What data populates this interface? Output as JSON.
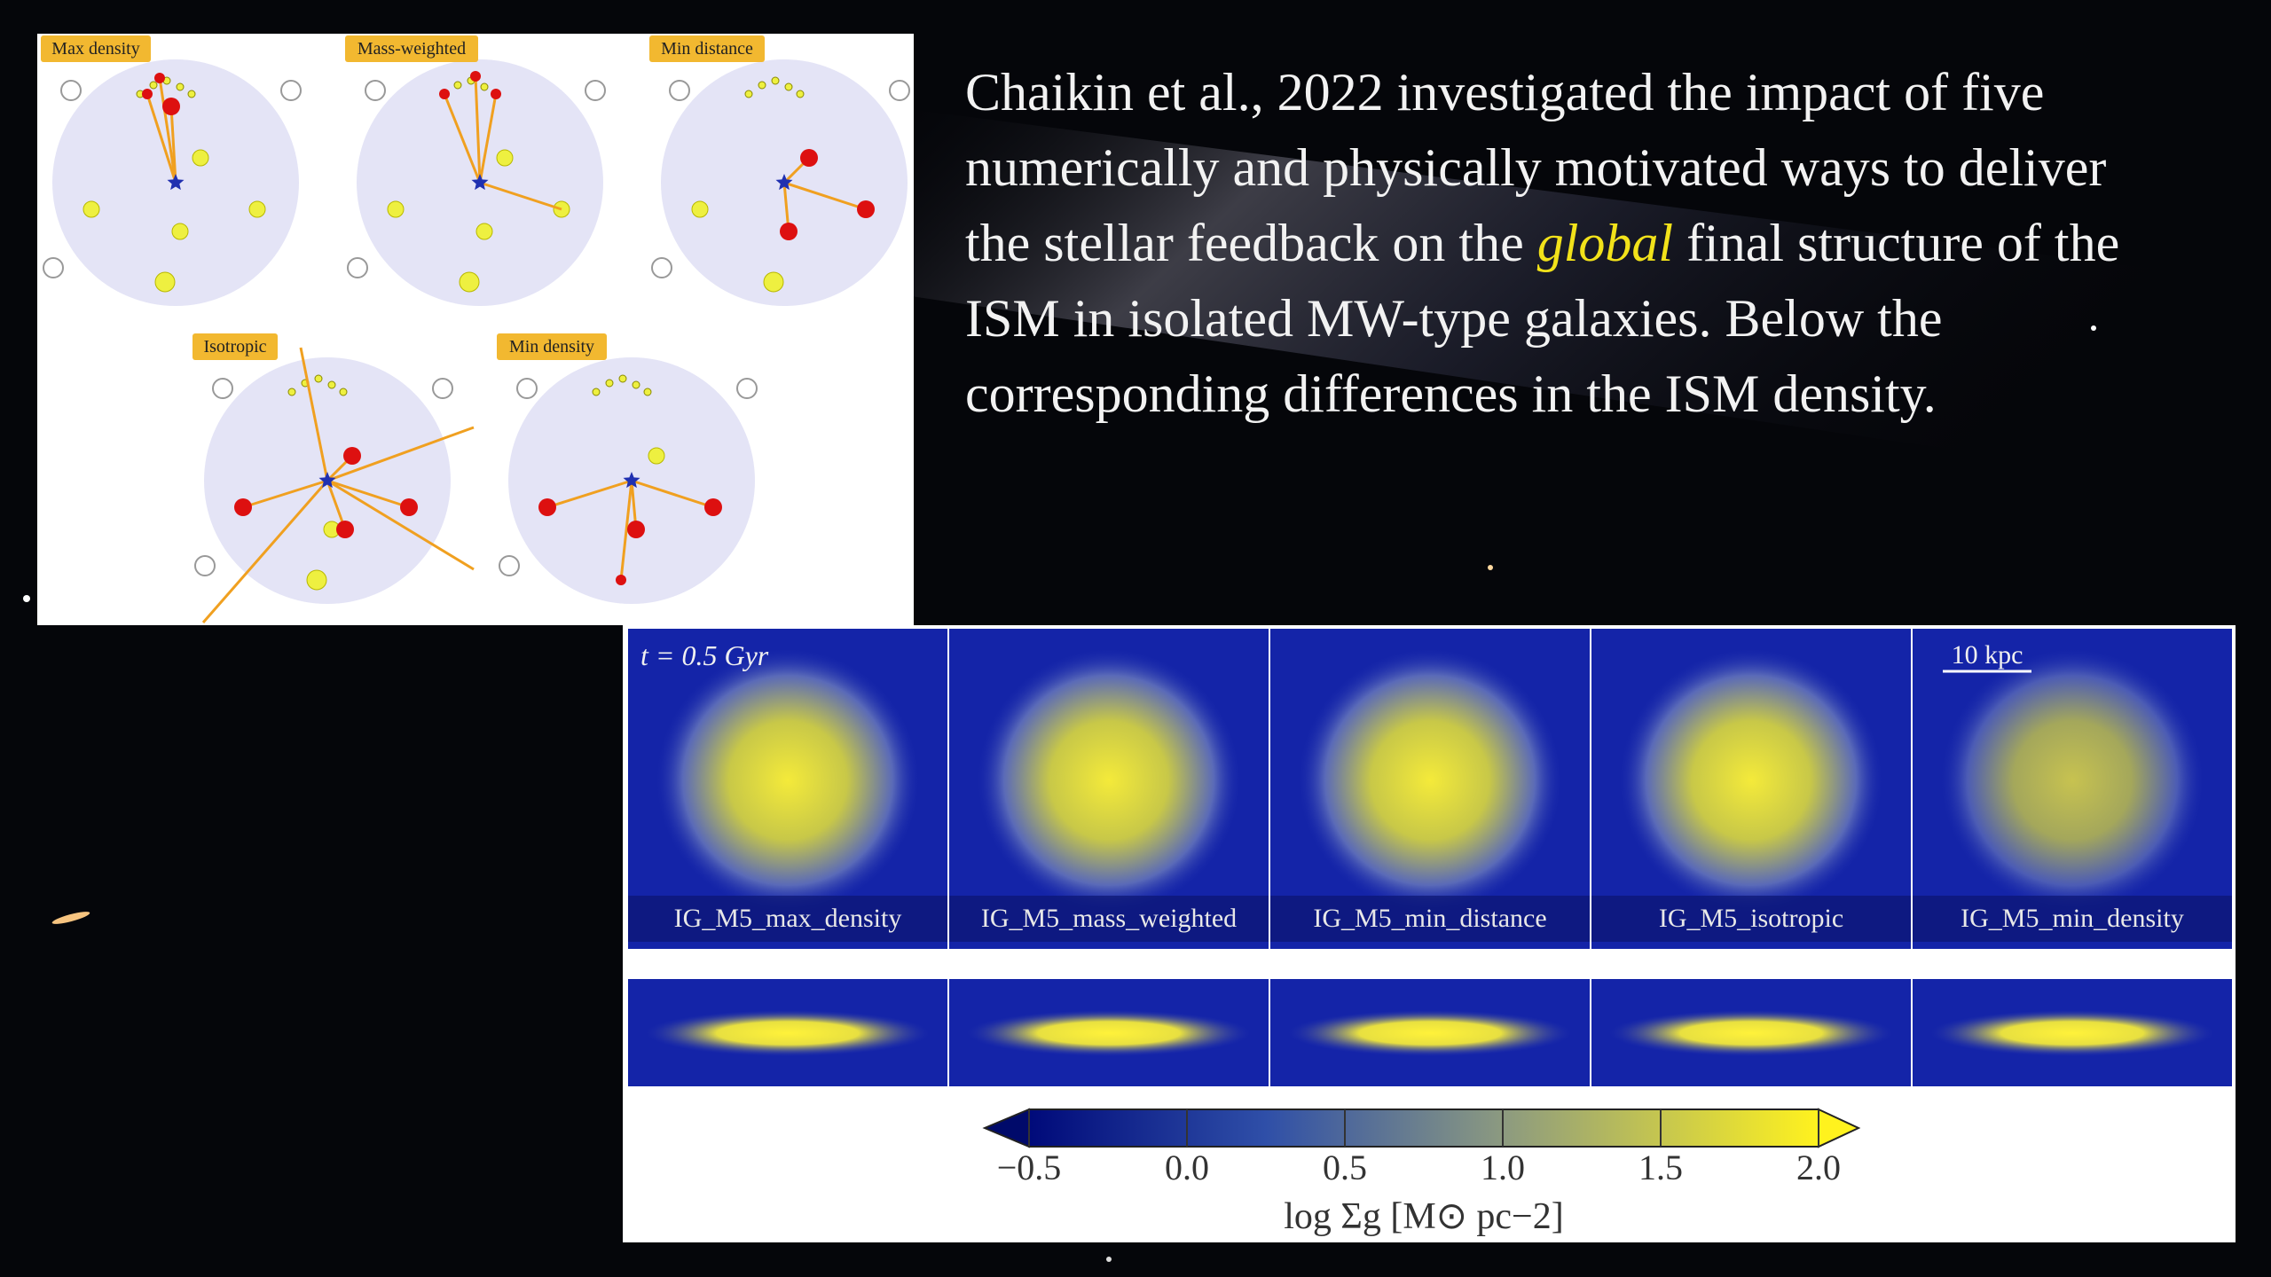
{
  "diagram": {
    "labels": [
      "Max density",
      "Mass-weighted",
      "Min distance",
      "Isotropic",
      "Min density"
    ]
  },
  "paragraph": {
    "before": "Chaikin et al., 2022 investigated the impact of five numerically and physically motivated ways to deliver the stellar feedback on the",
    "emphasis": "global",
    "after": "final structure of the ISM in isolated MW-type galaxies. Below the corresponding differences in the ISM density."
  },
  "figure": {
    "time_label": "t = 0.5 Gyr",
    "scale_label": "10 kpc",
    "panels": [
      "IG_M5_max_density",
      "IG_M5_mass_weighted",
      "IG_M5_min_distance",
      "IG_M5_isotropic",
      "IG_M5_min_density"
    ],
    "colorbar": {
      "label": "log Σg [M⊙ pc−2]",
      "lim": [
        -0.5,
        2.0
      ],
      "ticks": [
        {
          "value": -0.5,
          "label": "−0.5"
        },
        {
          "value": 0,
          "label": "0.0"
        },
        0.5,
        {
          "value": 1,
          "label": "1.0"
        },
        1.5,
        {
          "value": 2,
          "label": "2.0"
        }
      ]
    }
  }
}
